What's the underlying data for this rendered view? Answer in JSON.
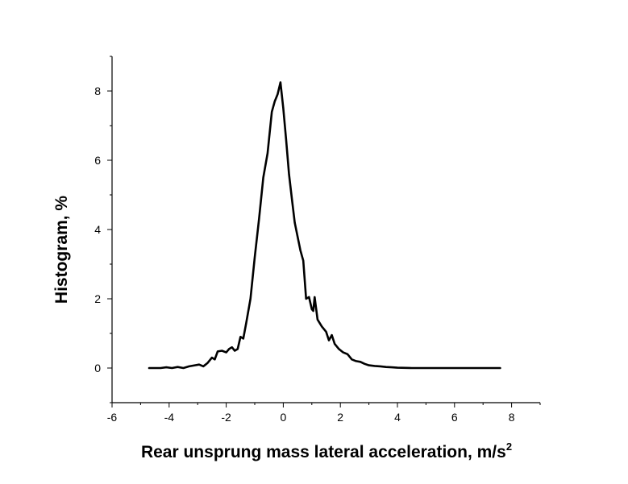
{
  "chart_data": {
    "type": "line",
    "title": "",
    "xlabel": "Rear unsprung mass lateral acceleration, m/s",
    "xlabel_superscript": "2",
    "ylabel": "Histogram, %",
    "xlim": [
      -6,
      9
    ],
    "ylim": [
      -1,
      9
    ],
    "xticks": [
      -6,
      -4,
      -2,
      0,
      2,
      4,
      6,
      8
    ],
    "yticks": [
      0,
      2,
      4,
      6,
      8
    ],
    "grid": false,
    "line_color": "#000000",
    "series": [
      {
        "points": [
          [
            -4.7,
            0.0
          ],
          [
            -4.3,
            0.0
          ],
          [
            -4.1,
            0.02
          ],
          [
            -3.9,
            0.0
          ],
          [
            -3.7,
            0.03
          ],
          [
            -3.5,
            0.0
          ],
          [
            -3.3,
            0.05
          ],
          [
            -3.1,
            0.08
          ],
          [
            -2.95,
            0.1
          ],
          [
            -2.8,
            0.05
          ],
          [
            -2.65,
            0.15
          ],
          [
            -2.5,
            0.3
          ],
          [
            -2.4,
            0.25
          ],
          [
            -2.3,
            0.48
          ],
          [
            -2.15,
            0.5
          ],
          [
            -2.0,
            0.45
          ],
          [
            -1.9,
            0.55
          ],
          [
            -1.8,
            0.6
          ],
          [
            -1.7,
            0.5
          ],
          [
            -1.6,
            0.55
          ],
          [
            -1.5,
            0.9
          ],
          [
            -1.4,
            0.85
          ],
          [
            -1.3,
            1.3
          ],
          [
            -1.15,
            2.0
          ],
          [
            -1.0,
            3.2
          ],
          [
            -0.85,
            4.3
          ],
          [
            -0.7,
            5.5
          ],
          [
            -0.55,
            6.2
          ],
          [
            -0.4,
            7.4
          ],
          [
            -0.3,
            7.7
          ],
          [
            -0.2,
            7.9
          ],
          [
            -0.1,
            8.25
          ],
          [
            0.0,
            7.5
          ],
          [
            0.1,
            6.6
          ],
          [
            0.2,
            5.6
          ],
          [
            0.3,
            4.9
          ],
          [
            0.4,
            4.2
          ],
          [
            0.5,
            3.8
          ],
          [
            0.6,
            3.4
          ],
          [
            0.7,
            3.1
          ],
          [
            0.8,
            2.0
          ],
          [
            0.9,
            2.05
          ],
          [
            1.0,
            1.7
          ],
          [
            1.05,
            1.65
          ],
          [
            1.1,
            2.05
          ],
          [
            1.2,
            1.4
          ],
          [
            1.35,
            1.2
          ],
          [
            1.5,
            1.05
          ],
          [
            1.6,
            0.8
          ],
          [
            1.7,
            0.95
          ],
          [
            1.8,
            0.7
          ],
          [
            1.95,
            0.55
          ],
          [
            2.1,
            0.45
          ],
          [
            2.25,
            0.4
          ],
          [
            2.4,
            0.25
          ],
          [
            2.55,
            0.2
          ],
          [
            2.7,
            0.18
          ],
          [
            2.85,
            0.12
          ],
          [
            3.0,
            0.08
          ],
          [
            3.2,
            0.06
          ],
          [
            3.4,
            0.05
          ],
          [
            3.6,
            0.03
          ],
          [
            3.8,
            0.02
          ],
          [
            4.0,
            0.01
          ],
          [
            4.5,
            0.0
          ],
          [
            5.0,
            0.0
          ],
          [
            5.5,
            0.0
          ],
          [
            6.0,
            0.0
          ],
          [
            6.5,
            0.0
          ],
          [
            7.0,
            0.0
          ],
          [
            7.6,
            0.0
          ]
        ]
      }
    ]
  }
}
